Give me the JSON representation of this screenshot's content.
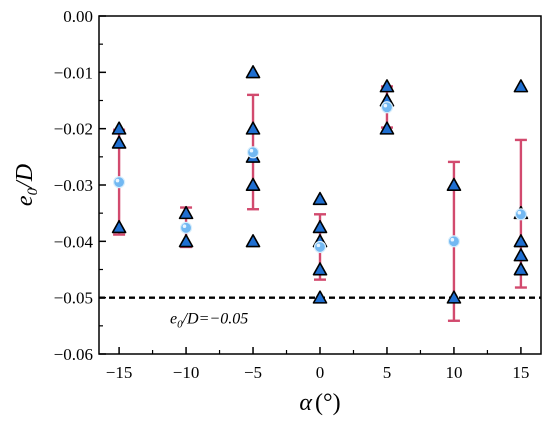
{
  "chart_data": {
    "type": "scatter",
    "xlabel": {
      "symbol": "α",
      "unit": "(°)"
    },
    "ylabel": {
      "main": "e",
      "sub": "0",
      "rest": "/D"
    },
    "xlim": [
      -16.5,
      16.5
    ],
    "ylim": [
      -0.06,
      0.0
    ],
    "x_ticks": [
      -15,
      -10,
      -5,
      0,
      5,
      10,
      15
    ],
    "x_tick_labels": [
      "−15",
      "−10",
      "−5",
      "0",
      "5",
      "10",
      "15"
    ],
    "y_ticks": [
      0.0,
      -0.01,
      -0.02,
      -0.03,
      -0.04,
      -0.05,
      -0.06
    ],
    "y_tick_labels": [
      "0.00",
      "−0.01",
      "−0.02",
      "−0.03",
      "−0.04",
      "−0.05",
      "−0.06"
    ],
    "grid": false,
    "series": [
      {
        "marker": "triangle",
        "color": "#1f6fd1",
        "points": [
          {
            "x": -15,
            "y": -0.02
          },
          {
            "x": -15,
            "y": -0.0225
          },
          {
            "x": -15,
            "y": -0.0375
          },
          {
            "x": -10,
            "y": -0.035
          },
          {
            "x": -10,
            "y": -0.04
          },
          {
            "x": -5,
            "y": -0.01
          },
          {
            "x": -5,
            "y": -0.02
          },
          {
            "x": -5,
            "y": -0.025
          },
          {
            "x": -5,
            "y": -0.03
          },
          {
            "x": -5,
            "y": -0.04
          },
          {
            "x": 0,
            "y": -0.0325
          },
          {
            "x": 0,
            "y": -0.0375
          },
          {
            "x": 0,
            "y": -0.04
          },
          {
            "x": 0,
            "y": -0.045
          },
          {
            "x": 0,
            "y": -0.05
          },
          {
            "x": 5,
            "y": -0.0125
          },
          {
            "x": 5,
            "y": -0.015
          },
          {
            "x": 5,
            "y": -0.02
          },
          {
            "x": 10,
            "y": -0.03
          },
          {
            "x": 10,
            "y": -0.05
          },
          {
            "x": 15,
            "y": -0.0125
          },
          {
            "x": 15,
            "y": -0.035
          },
          {
            "x": 15,
            "y": -0.04
          },
          {
            "x": 15,
            "y": -0.0425
          },
          {
            "x": 15,
            "y": -0.045
          }
        ]
      },
      {
        "marker": "circle",
        "color": "#72b8f2",
        "error_color": "#d24a6e",
        "points": [
          {
            "x": -15,
            "y": -0.0295,
            "yerr_low": -0.0388,
            "yerr_high": -0.0202
          },
          {
            "x": -10,
            "y": -0.0376,
            "yerr_low": -0.041,
            "yerr_high": -0.034
          },
          {
            "x": -5,
            "y": -0.0242,
            "yerr_low": -0.0343,
            "yerr_high": -0.014
          },
          {
            "x": 0,
            "y": -0.041,
            "yerr_low": -0.0468,
            "yerr_high": -0.0352
          },
          {
            "x": 5,
            "y": -0.0162,
            "yerr_low": -0.0198,
            "yerr_high": -0.0125
          },
          {
            "x": 10,
            "y": -0.04,
            "yerr_low": -0.0541,
            "yerr_high": -0.0259
          },
          {
            "x": 15,
            "y": -0.0352,
            "yerr_low": -0.0482,
            "yerr_high": -0.022
          }
        ]
      }
    ],
    "reference_line": {
      "y": -0.05,
      "style": "dashed",
      "label": {
        "main": "e",
        "sub": "0",
        "rest": "/D=−0.05"
      }
    }
  }
}
